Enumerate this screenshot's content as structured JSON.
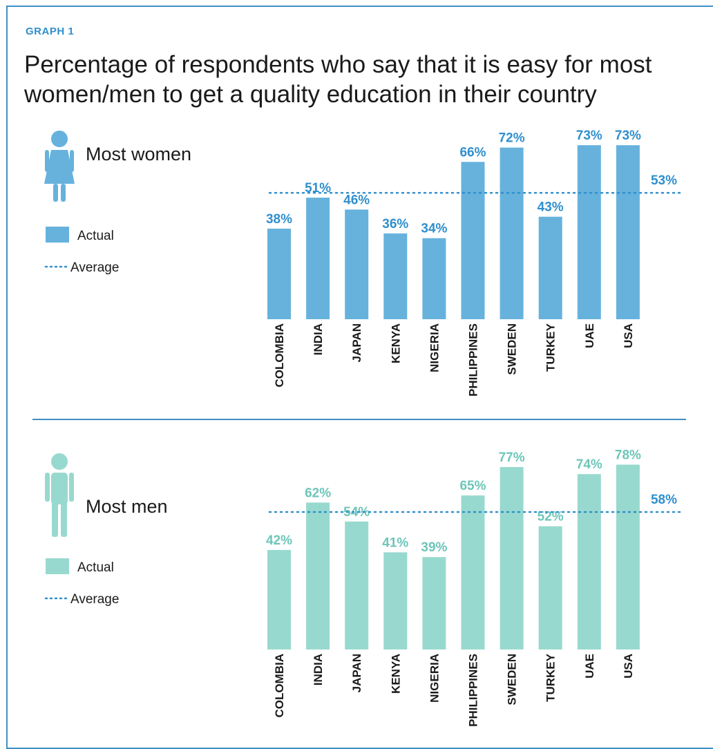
{
  "graph_label": "GRAPH 1",
  "title": "Percentage of respondents who say that it is easy for most women/men to get a quality education in their country",
  "colors": {
    "frame": "#3e8fc4",
    "label": "#2f8fcd",
    "women_bar": "#66b2dd",
    "women_value": "#2f8fcd",
    "men_bar": "#98d9cf",
    "men_value": "#6dc6b8",
    "average_line": "#2f8fcd",
    "text": "#1a1a1a"
  },
  "icons": {
    "women": "woman-figure-icon",
    "men": "man-figure-icon"
  },
  "legend": {
    "actual": "Actual",
    "average": "Average"
  },
  "chart_data": [
    {
      "type": "bar",
      "series_label": "Most women",
      "categories": [
        "COLOMBIA",
        "INDIA",
        "JAPAN",
        "KENYA",
        "NIGERIA",
        "PHILIPPINES",
        "SWEDEN",
        "TURKEY",
        "UAE",
        "USA"
      ],
      "values": [
        38,
        51,
        46,
        36,
        34,
        66,
        72,
        43,
        73,
        73
      ],
      "value_labels": [
        "38%",
        "51%",
        "46%",
        "36%",
        "34%",
        "66%",
        "72%",
        "43%",
        "73%",
        "73%"
      ],
      "average": 53,
      "average_label": "53%",
      "grid": false
    },
    {
      "type": "bar",
      "series_label": "Most men",
      "categories": [
        "COLOMBIA",
        "INDIA",
        "JAPAN",
        "KENYA",
        "NIGERIA",
        "PHILIPPINES",
        "SWEDEN",
        "TURKEY",
        "UAE",
        "USA"
      ],
      "values": [
        42,
        62,
        54,
        41,
        39,
        65,
        77,
        52,
        74,
        78
      ],
      "value_labels": [
        "42%",
        "62%",
        "54%",
        "41%",
        "39%",
        "65%",
        "77%",
        "52%",
        "74%",
        "78%"
      ],
      "average": 58,
      "average_label": "58%",
      "grid": false
    }
  ]
}
